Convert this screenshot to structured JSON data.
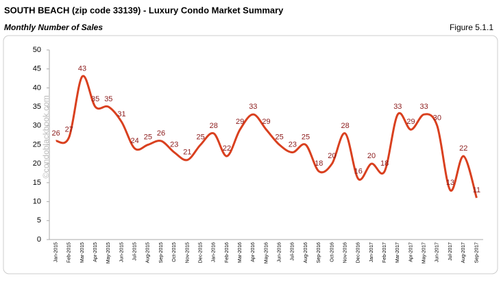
{
  "chart_data": {
    "type": "line",
    "title": "SOUTH BEACH (zip code 33139) - Luxury Condo Market Summary",
    "subtitle": "Monthly Number of Sales",
    "figure": "Figure 5.1.1",
    "watermark": "©condoblackbook.com",
    "categories": [
      "Jan-2015",
      "Feb-2015",
      "Mar-2015",
      "Apr-2015",
      "May-2015",
      "Jun-2015",
      "Jul-2015",
      "Aug-2015",
      "Sep-2015",
      "Oct-2015",
      "Nov-2015",
      "Dec-2015",
      "Jan-2016",
      "Feb-2016",
      "Mar-2016",
      "Apr-2016",
      "May-2016",
      "Jun-2016",
      "Jul-2016",
      "Aug-2016",
      "Sep-2016",
      "Oct-2016",
      "Nov-2016",
      "Dec-2016",
      "Jan-2017",
      "Feb-2017",
      "Mar-2017",
      "Apr-2017",
      "May-2017",
      "Jun-2017",
      "Jul-2017",
      "Aug-2017",
      "Sep-2017"
    ],
    "values": [
      26,
      27,
      43,
      35,
      35,
      31,
      24,
      25,
      26,
      23,
      21,
      25,
      28,
      22,
      29,
      33,
      29,
      25,
      23,
      25,
      18,
      20,
      28,
      16,
      20,
      18,
      33,
      29,
      33,
      30,
      13,
      22,
      11
    ],
    "color": "#d9401f",
    "label_color": "#8b1a1a",
    "ylim": [
      0,
      50
    ],
    "yticks": [
      0,
      5,
      10,
      15,
      20,
      25,
      30,
      35,
      40,
      45,
      50
    ]
  }
}
